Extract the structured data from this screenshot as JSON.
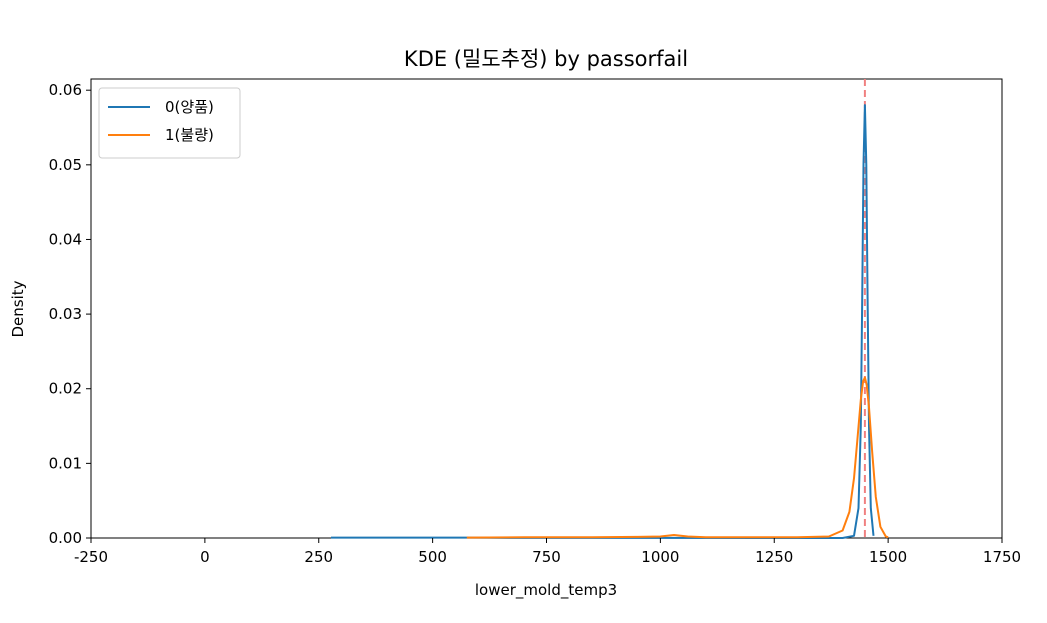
{
  "chart_data": {
    "type": "line",
    "title": "KDE (밀도추정) by passorfail",
    "xlabel": "lower_mold_temp3",
    "ylabel": "Density",
    "xlim": [
      -250,
      1750
    ],
    "ylim": [
      0,
      0.0615
    ],
    "x_ticks": [
      -250,
      0,
      250,
      500,
      750,
      1000,
      1250,
      1500,
      1750
    ],
    "x_tick_labels": [
      "-250",
      "0",
      "250",
      "500",
      "750",
      "1000",
      "1250",
      "1500",
      "1750"
    ],
    "y_ticks": [
      0,
      0.01,
      0.02,
      0.03,
      0.04,
      0.05,
      0.06
    ],
    "y_tick_labels": [
      "0.00",
      "0.01",
      "0.02",
      "0.03",
      "0.04",
      "0.05",
      "0.06"
    ],
    "grid": false,
    "legend_position": "top-left",
    "reference_line": {
      "x": 1449,
      "style": "dashed",
      "color": "#f08080"
    },
    "series": [
      {
        "name": "0(양품)",
        "color": "#1f77b4",
        "x": [
          277,
          400,
          500,
          575,
          700,
          900,
          1300,
          1400,
          1425,
          1435,
          1440,
          1443,
          1446,
          1449,
          1452,
          1455,
          1458,
          1462,
          1468
        ],
        "y": [
          5e-05,
          5e-05,
          5e-05,
          5e-05,
          2e-05,
          1e-05,
          0.0,
          0.0,
          0.0003,
          0.004,
          0.015,
          0.032,
          0.05,
          0.058,
          0.05,
          0.032,
          0.015,
          0.004,
          0.0003
        ]
      },
      {
        "name": "1(불량)",
        "color": "#ff7f0e",
        "x": [
          575,
          700,
          850,
          950,
          1000,
          1030,
          1060,
          1100,
          1200,
          1300,
          1370,
          1400,
          1415,
          1425,
          1433,
          1440,
          1445,
          1449,
          1453,
          1458,
          1465,
          1473,
          1483,
          1495,
          1500
        ],
        "y": [
          5e-05,
          0.0001,
          0.0001,
          0.00015,
          0.0002,
          0.0004,
          0.0002,
          0.0001,
          0.0001,
          0.0001,
          0.0002,
          0.001,
          0.0035,
          0.008,
          0.0135,
          0.0185,
          0.021,
          0.0215,
          0.0205,
          0.0175,
          0.0115,
          0.0055,
          0.0015,
          0.0002,
          0.0001
        ]
      }
    ]
  }
}
